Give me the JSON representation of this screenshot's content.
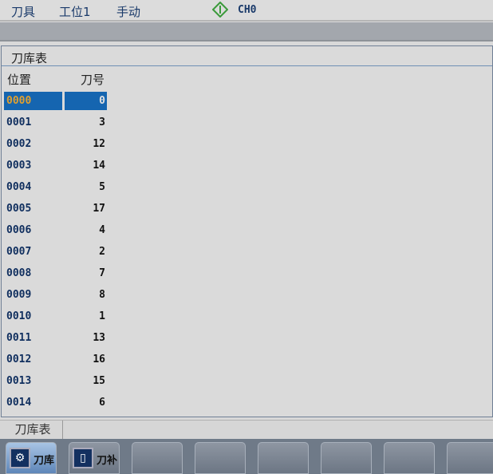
{
  "topbar": {
    "tool": "刀具",
    "station": "工位1",
    "mode": "手动",
    "channel": "CH0",
    "channel_icon": "diamond-cycle-start-icon",
    "channel_icon_color": "#3a9a3a"
  },
  "panel": {
    "title": "刀库表",
    "headers": {
      "position": "位置",
      "tool_no": "刀号"
    },
    "rows": [
      [
        "0000",
        "0"
      ],
      [
        "0001",
        "3"
      ],
      [
        "0002",
        "12"
      ],
      [
        "0003",
        "14"
      ],
      [
        "0004",
        "5"
      ],
      [
        "0005",
        "17"
      ],
      [
        "0006",
        "4"
      ],
      [
        "0007",
        "2"
      ],
      [
        "0008",
        "7"
      ],
      [
        "0009",
        "8"
      ],
      [
        "0010",
        "1"
      ],
      [
        "0011",
        "13"
      ],
      [
        "0012",
        "16"
      ],
      [
        "0013",
        "15"
      ],
      [
        "0014",
        "6"
      ]
    ]
  },
  "bottom_tab": "刀库表",
  "softkeys": [
    {
      "label": "刀库",
      "icon": "gear-icon",
      "active": true
    },
    {
      "label": "刀补",
      "icon": "tool-offset-icon",
      "active": false
    }
  ],
  "colors": {
    "selection": "#1565b0",
    "selected_text": "#e0a030"
  }
}
